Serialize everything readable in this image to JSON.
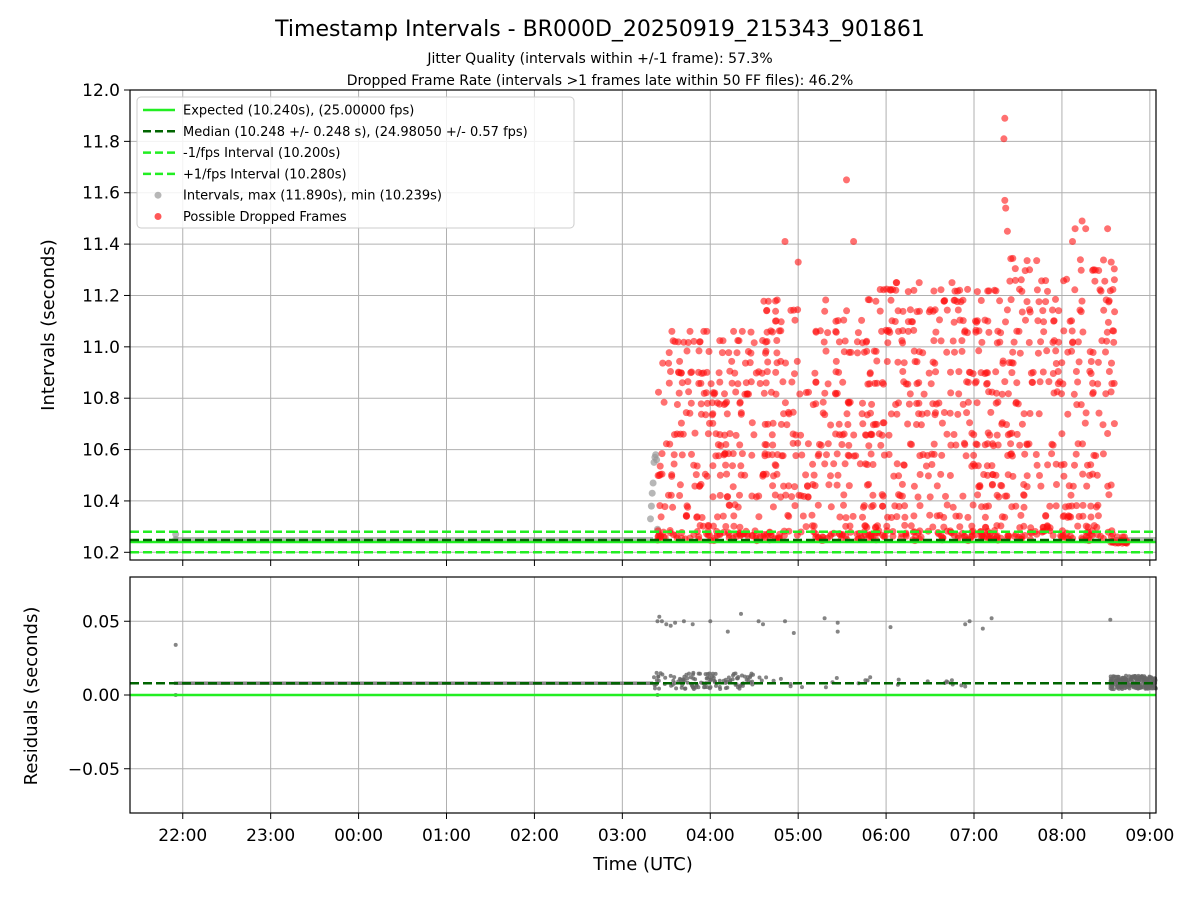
{
  "figure": {
    "title": "Timestamp Intervals - BR000D_20250919_215343_901861",
    "subtitle_1": "Jitter Quality (intervals within +/-1 frame): 57.3%",
    "subtitle_2": "Dropped Frame Rate (intervals >1 frames late within 50 FF files): 46.2%",
    "xlabel": "Time (UTC)"
  },
  "colors": {
    "expected": "#22ee22",
    "median": "#006400",
    "bounds": "#22ee22",
    "intervals": "#999999",
    "dropped": "#ff1111",
    "residuals": "#666666",
    "grid": "#b0b0b0"
  },
  "chart_data": [
    {
      "type": "scatter",
      "name": "intervals",
      "ylabel": "Intervals (seconds)",
      "ylim": [
        10.17,
        12.0
      ],
      "xlim_hours": [
        21.4,
        33.07
      ],
      "x_ticks": [
        22,
        23,
        24,
        25,
        26,
        27,
        28,
        29,
        30,
        31,
        32,
        33
      ],
      "x_tick_labels": [
        "22:00",
        "23:00",
        "00:00",
        "01:00",
        "02:00",
        "03:00",
        "04:00",
        "05:00",
        "06:00",
        "07:00",
        "08:00",
        "09:00"
      ],
      "y_ticks": [
        10.2,
        10.4,
        10.6,
        10.8,
        11.0,
        11.2,
        11.4,
        11.6,
        11.8,
        12.0
      ],
      "y_tick_labels": [
        "10.2",
        "10.4",
        "10.6",
        "10.8",
        "11.0",
        "11.2",
        "11.4",
        "11.6",
        "11.8",
        "12.0"
      ],
      "grid": true,
      "legend_position": "top-left",
      "lines": [
        {
          "name": "expected",
          "y": 10.24,
          "style": "solid"
        },
        {
          "name": "median",
          "y": 10.248,
          "style": "dashed"
        },
        {
          "name": "lower",
          "y": 10.2,
          "style": "dashed"
        },
        {
          "name": "upper",
          "y": 10.28,
          "style": "dashed"
        }
      ],
      "series": [
        {
          "name": "Intervals",
          "baseline_segments": [
            [
              21.9,
              27.35,
              10.248
            ],
            [
              32.6,
              33.07,
              10.248
            ]
          ],
          "points": [
            [
              21.92,
              10.25
            ],
            [
              21.92,
              10.27
            ],
            [
              27.32,
              10.33
            ],
            [
              27.33,
              10.38
            ],
            [
              27.34,
              10.43
            ],
            [
              27.35,
              10.47
            ],
            [
              27.36,
              10.55
            ],
            [
              27.37,
              10.57
            ],
            [
              27.38,
              10.58
            ],
            [
              27.39,
              10.56
            ],
            [
              27.4,
              10.29
            ],
            [
              27.42,
              10.27
            ]
          ]
        },
        {
          "name": "Possible Dropped Frames",
          "annotated_points": [
            [
              31.35,
              11.89
            ],
            [
              31.34,
              11.81
            ],
            [
              29.55,
              11.65
            ],
            [
              31.35,
              11.57
            ],
            [
              31.36,
              11.54
            ],
            [
              31.38,
              11.45
            ],
            [
              29.63,
              11.41
            ],
            [
              32.23,
              11.49
            ],
            [
              32.15,
              11.46
            ],
            [
              32.27,
              11.46
            ],
            [
              32.52,
              11.46
            ],
            [
              28.85,
              11.41
            ],
            [
              32.12,
              11.41
            ],
            [
              29.0,
              11.33
            ],
            [
              32.56,
              11.33
            ]
          ],
          "clusters": [
            {
              "x_range": [
                27.4,
                28.6
              ],
              "y_range": [
                10.26,
                11.06
              ],
              "count": 260
            },
            {
              "x_range": [
                28.6,
                29.9
              ],
              "y_range": [
                10.26,
                11.2
              ],
              "count": 300
            },
            {
              "x_range": [
                29.9,
                31.2
              ],
              "y_range": [
                10.26,
                11.25
              ],
              "count": 320
            },
            {
              "x_range": [
                31.2,
                32.6
              ],
              "y_range": [
                10.26,
                11.35
              ],
              "count": 340
            },
            {
              "x_range": [
                32.55,
                32.75
              ],
              "y_range": [
                10.24,
                10.26
              ],
              "count": 25
            }
          ]
        }
      ]
    },
    {
      "type": "scatter",
      "name": "residuals",
      "ylabel": "Residuals (seconds)",
      "ylim": [
        -0.08,
        0.08
      ],
      "xlim_hours": [
        21.4,
        33.07
      ],
      "y_ticks": [
        -0.05,
        0.0,
        0.05
      ],
      "y_tick_labels": [
        "−0.05",
        "0.00",
        "0.05"
      ],
      "grid": true,
      "lines": [
        {
          "name": "zero",
          "y": 0.0,
          "style": "solid"
        },
        {
          "name": "median",
          "y": 0.008,
          "style": "dashed"
        }
      ],
      "series": [
        {
          "name": "Residuals",
          "baseline_segment": [
            21.9,
            27.35,
            0.008
          ],
          "points": [
            [
              21.92,
              0.034
            ],
            [
              21.92,
              0.0
            ],
            [
              27.4,
              0.05
            ],
            [
              27.42,
              0.053
            ],
            [
              27.45,
              0.05
            ],
            [
              27.5,
              0.048
            ],
            [
              27.55,
              0.047
            ],
            [
              27.6,
              0.049
            ],
            [
              27.7,
              0.05
            ],
            [
              27.8,
              0.048
            ],
            [
              28.0,
              0.05
            ],
            [
              28.2,
              0.043
            ],
            [
              28.35,
              0.055
            ],
            [
              28.55,
              0.05
            ],
            [
              28.6,
              0.048
            ],
            [
              28.85,
              0.05
            ],
            [
              28.95,
              0.042
            ],
            [
              29.3,
              0.052
            ],
            [
              29.45,
              0.049
            ],
            [
              29.45,
              0.043
            ],
            [
              30.05,
              0.046
            ],
            [
              30.9,
              0.048
            ],
            [
              30.95,
              0.05
            ],
            [
              31.1,
              0.045
            ],
            [
              31.2,
              0.052
            ],
            [
              32.55,
              0.051
            ],
            [
              27.4,
              0.0
            ]
          ],
          "clusters": [
            {
              "x_range": [
                27.35,
                28.5
              ],
              "y_range": [
                0.004,
                0.015
              ],
              "count": 120
            },
            {
              "x_range": [
                28.5,
                31.0
              ],
              "y_range": [
                0.005,
                0.012
              ],
              "count": 25
            },
            {
              "x_range": [
                32.55,
                33.07
              ],
              "y_range": [
                0.004,
                0.013
              ],
              "count": 200
            }
          ]
        }
      ]
    }
  ],
  "legend": [
    {
      "label": "Expected (10.240s), (25.00000 fps)",
      "kind": "solid",
      "color_key": "expected"
    },
    {
      "label": "Median (10.248 +/- 0.248 s), (24.98050 +/- 0.57 fps)",
      "kind": "dashed",
      "color_key": "median"
    },
    {
      "label": "-1/fps Interval (10.200s)",
      "kind": "dashed",
      "color_key": "bounds"
    },
    {
      "label": "+1/fps Interval (10.280s)",
      "kind": "dashed",
      "color_key": "bounds"
    },
    {
      "label": "Intervals, max (11.890s), min (10.239s)",
      "kind": "dot",
      "color_key": "intervals"
    },
    {
      "label": "Possible Dropped Frames",
      "kind": "dot",
      "color_key": "dropped"
    }
  ]
}
